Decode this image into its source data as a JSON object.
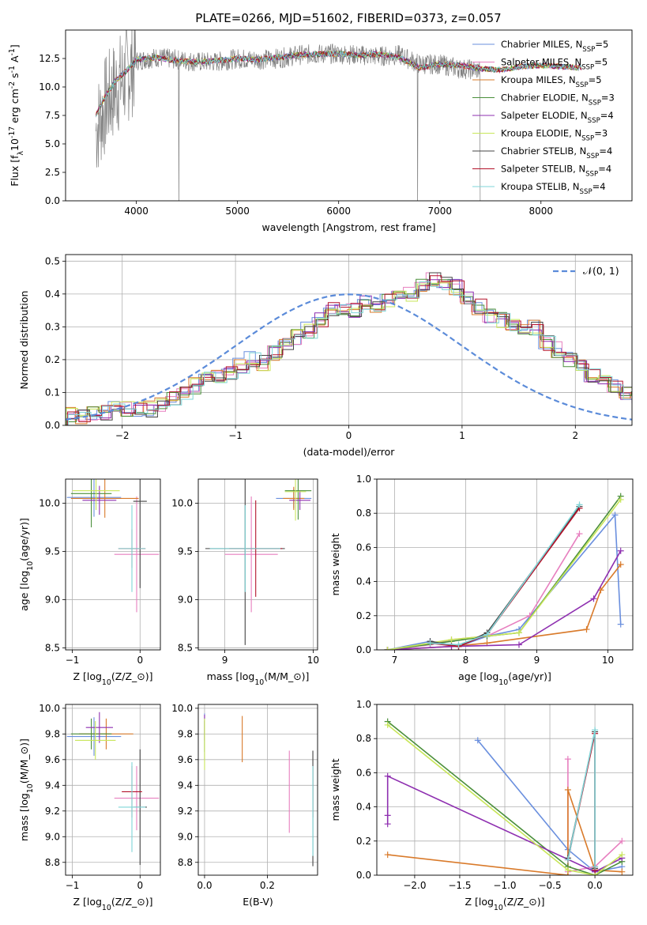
{
  "figure": {
    "title": "PLATE=0266, MJD=51602, FIBERID=0373, z=0.057",
    "models": [
      {
        "label": "Chabrier MILES, N$_{SSP}$=5",
        "color": "#6a8fde"
      },
      {
        "label": "Salpeter MILES, N$_{SSP}$=5",
        "color": "#e77fbf"
      },
      {
        "label": "Kroupa MILES, N$_{SSP}$=5",
        "color": "#d97a2a"
      },
      {
        "label": "Chabrier ELODIE, N$_{SSP}$=3",
        "color": "#4a8f3a"
      },
      {
        "label": "Salpeter ELODIE, N$_{SSP}$=4",
        "color": "#8e2fb0"
      },
      {
        "label": "Kroupa ELODIE, N$_{SSP}$=3",
        "color": "#c8e65a"
      },
      {
        "label": "Chabrier STELIB, N$_{SSP}$=4",
        "color": "#444444"
      },
      {
        "label": "Salpeter STELIB, N$_{SSP}$=4",
        "color": "#b3122a"
      },
      {
        "label": "Kroupa STELIB, N$_{SSP}$=4",
        "color": "#7fd6d8"
      }
    ]
  },
  "chart_data": [
    {
      "type": "line",
      "id": "spectrum",
      "xlabel": "wavelength [Angstrom, rest frame]",
      "ylabel": "Flux [f$_{λ}$10$^{-17}$ erg cm$^{-2}$ s$^{-1}$ A$^{-1}$]",
      "xlim": [
        3300,
        8900
      ],
      "ylim": [
        0,
        15
      ],
      "xticks": [
        4000,
        5000,
        6000,
        7000,
        8000
      ],
      "yticks": [
        0.0,
        2.5,
        5.0,
        7.5,
        10.0,
        12.5
      ],
      "ytick_labels": [
        "0.0",
        "2.5",
        "5.0",
        "7.5",
        "10.0",
        "12.5"
      ],
      "grid": false,
      "legend": "right",
      "data_series": {
        "name": "data",
        "color": "#808080",
        "x": [
          3600,
          3700,
          3800,
          3900,
          4000,
          4200,
          4400,
          4600,
          4800,
          5000,
          5200,
          5400,
          5600,
          5800,
          6000,
          6200,
          6400,
          6600,
          6800,
          7000,
          7200,
          7400
        ],
        "y": [
          6.2,
          8.5,
          10.0,
          11.0,
          12.3,
          12.6,
          12.4,
          12.2,
          12.2,
          12.5,
          12.4,
          12.5,
          12.8,
          12.9,
          12.9,
          12.8,
          12.7,
          12.8,
          12.0,
          12.0,
          11.6,
          11.5
        ]
      },
      "model_series": {
        "x": [
          3600,
          3700,
          3800,
          3900,
          4000,
          4200,
          4400,
          4600,
          4800,
          5000,
          5200,
          5400,
          5600,
          5800,
          6000,
          6200,
          6400,
          6600,
          6800,
          7000,
          7200,
          7400,
          7600,
          7800,
          8000,
          8200,
          8400
        ],
        "y": [
          7.5,
          9.3,
          10.6,
          11.4,
          12.4,
          12.6,
          12.3,
          12.2,
          12.3,
          12.5,
          12.4,
          12.6,
          12.8,
          12.9,
          12.9,
          12.8,
          12.9,
          12.6,
          11.7,
          12.0,
          11.9,
          11.6,
          11.5,
          11.8,
          11.9,
          11.8,
          11.7
        ]
      }
    },
    {
      "type": "bar",
      "id": "residual-histogram",
      "xlabel": "(data-model)/error",
      "ylabel": "Normed distribution",
      "xlim": [
        -2.5,
        2.5
      ],
      "ylim": [
        0,
        0.52
      ],
      "xticks": [
        -2,
        -1,
        0,
        1,
        2
      ],
      "xtick_labels": [
        "−2",
        "−1",
        "0",
        "1",
        "2"
      ],
      "yticks": [
        0.0,
        0.1,
        0.2,
        0.3,
        0.4,
        0.5
      ],
      "ytick_labels": [
        "0.0",
        "0.1",
        "0.2",
        "0.3",
        "0.4",
        "0.5"
      ],
      "grid": true,
      "legend": "top-right",
      "curve_label": "𝒩(0, 1)",
      "curve_color": "#5b8bd9",
      "bin_width": 0.1,
      "bins_start": -2.5,
      "base_values": [
        0.03,
        0.03,
        0.04,
        0.04,
        0.05,
        0.05,
        0.05,
        0.05,
        0.06,
        0.08,
        0.1,
        0.12,
        0.14,
        0.15,
        0.16,
        0.18,
        0.2,
        0.19,
        0.22,
        0.24,
        0.27,
        0.29,
        0.32,
        0.35,
        0.36,
        0.35,
        0.37,
        0.36,
        0.38,
        0.39,
        0.4,
        0.43,
        0.44,
        0.43,
        0.42,
        0.39,
        0.36,
        0.33,
        0.32,
        0.31,
        0.3,
        0.3,
        0.25,
        0.23,
        0.2,
        0.18,
        0.15,
        0.14,
        0.12,
        0.1,
        0.08,
        0.06,
        0.05,
        0.05,
        0.04,
        0.04,
        0.03,
        0.03,
        0.03,
        0.03
      ]
    },
    {
      "type": "scatter",
      "id": "age-vs-metallicity",
      "xlabel": "Z [log$_{10}$(Z/Z$_\\odot$)]",
      "ylabel": "age  [log$_{10}$(age/yr)]",
      "xlim": [
        -1.1,
        0.3
      ],
      "ylim": [
        8.48,
        10.25
      ],
      "xticks": [
        -1,
        0
      ],
      "xtick_labels": [
        "−1",
        "0"
      ],
      "yticks": [
        8.5,
        9.0,
        9.5,
        10.0
      ],
      "ytick_labels": [
        "8.5",
        "9.0",
        "9.5",
        "10.0"
      ],
      "grid": true,
      "points": [
        {
          "x": -0.68,
          "y": 10.06,
          "xerr": 0.4,
          "yerr": 0.2,
          "model": 0
        },
        {
          "x": -0.05,
          "y": 9.47,
          "xerr": 0.33,
          "yerr": 0.6,
          "model": 1
        },
        {
          "x": -0.52,
          "y": 10.05,
          "xerr": 0.5,
          "yerr": 0.2,
          "model": 2
        },
        {
          "x": -0.72,
          "y": 10.1,
          "xerr": 0.3,
          "yerr": 0.35,
          "model": 3
        },
        {
          "x": -0.6,
          "y": 10.03,
          "xerr": 0.25,
          "yerr": 0.15,
          "model": 4
        },
        {
          "x": -0.65,
          "y": 10.13,
          "xerr": 0.35,
          "yerr": 0.2,
          "model": 5
        },
        {
          "x": 0.0,
          "y": 10.02,
          "xerr": 0.1,
          "yerr": 0.9,
          "model": 6
        },
        {
          "x": -0.12,
          "y": 9.53,
          "xerr": 0.2,
          "yerr": 0.2,
          "model": 7
        },
        {
          "x": -0.12,
          "y": 9.53,
          "xerr": 0.2,
          "yerr": 0.45,
          "model": 8
        }
      ]
    },
    {
      "type": "scatter",
      "id": "age-vs-mass",
      "xlabel": "mass [log$_{10}$(M/M$_\\odot$)]",
      "ylabel": "",
      "xlim": [
        8.7,
        10.05
      ],
      "ylim": [
        8.48,
        10.25
      ],
      "xticks": [
        9,
        10
      ],
      "xtick_labels": [
        "9",
        "10"
      ],
      "yticks": [
        8.5,
        9.0,
        9.5,
        10.0
      ],
      "ytick_labels": [
        "8.5",
        "9.0",
        "9.5",
        "10.0"
      ],
      "grid": true,
      "points": [
        {
          "x": 9.78,
          "y": 10.05,
          "xerr": 0.2,
          "yerr": 0.1,
          "model": 0
        },
        {
          "x": 9.3,
          "y": 9.47,
          "xerr": 0.3,
          "yerr": 0.6,
          "model": 1
        },
        {
          "x": 9.78,
          "y": 10.05,
          "xerr": 0.12,
          "yerr": 0.12,
          "model": 2
        },
        {
          "x": 9.83,
          "y": 10.13,
          "xerr": 0.15,
          "yerr": 0.3,
          "model": 3
        },
        {
          "x": 9.85,
          "y": 10.03,
          "xerr": 0.12,
          "yerr": 0.1,
          "model": 4
        },
        {
          "x": 9.8,
          "y": 10.12,
          "xerr": 0.12,
          "yerr": 0.3,
          "model": 5
        },
        {
          "x": 9.23,
          "y": 9.53,
          "xerr": 0.45,
          "yerr": 1.0,
          "model": 6
        },
        {
          "x": 9.35,
          "y": 9.53,
          "xerr": 0.3,
          "yerr": 0.5,
          "model": 7
        },
        {
          "x": 9.23,
          "y": 9.53,
          "xerr": 0.4,
          "yerr": 0.45,
          "model": 8
        }
      ]
    },
    {
      "type": "line",
      "id": "mass-weight-vs-age",
      "xlabel": "age  [log$_{10}$(age/yr)]",
      "ylabel": "mass weight",
      "xlim": [
        6.75,
        10.35
      ],
      "ylim": [
        0,
        1.0
      ],
      "xticks": [
        7,
        8,
        9,
        10
      ],
      "xtick_labels": [
        "7",
        "8",
        "9",
        "10"
      ],
      "yticks": [
        0.0,
        0.2,
        0.4,
        0.6,
        0.8,
        1.0
      ],
      "ytick_labels": [
        "0.0",
        "0.2",
        "0.4",
        "0.6",
        "0.8",
        "1.0"
      ],
      "grid": true,
      "series": [
        {
          "model": 0,
          "x": [
            6.9,
            7.5,
            7.9,
            8.3,
            8.75,
            10.1,
            10.18
          ],
          "y": [
            0.0,
            0.05,
            0.02,
            0.08,
            0.12,
            0.79,
            0.15
          ]
        },
        {
          "model": 1,
          "x": [
            6.9,
            7.5,
            7.8,
            8.3,
            8.9,
            9.6
          ],
          "y": [
            0.0,
            0.03,
            0.06,
            0.08,
            0.2,
            0.68
          ]
        },
        {
          "model": 2,
          "x": [
            6.9,
            7.8,
            8.3,
            9.7,
            9.9,
            10.18
          ],
          "y": [
            0.0,
            0.02,
            0.04,
            0.12,
            0.35,
            0.5
          ]
        },
        {
          "model": 3,
          "x": [
            6.9,
            7.8,
            8.3,
            8.75,
            10.18
          ],
          "y": [
            0.0,
            0.05,
            0.08,
            0.1,
            0.9
          ]
        },
        {
          "model": 4,
          "x": [
            6.9,
            7.8,
            8.75,
            9.8,
            10.18
          ],
          "y": [
            0.0,
            0.02,
            0.03,
            0.3,
            0.58
          ]
        },
        {
          "model": 5,
          "x": [
            6.9,
            7.8,
            8.75,
            10.18
          ],
          "y": [
            0.0,
            0.06,
            0.1,
            0.88
          ]
        },
        {
          "model": 6,
          "x": [
            7.5,
            7.9,
            8.3,
            9.6
          ],
          "y": [
            0.05,
            0.02,
            0.1,
            0.84
          ]
        },
        {
          "model": 7,
          "x": [
            7.5,
            7.9,
            8.3,
            9.6
          ],
          "y": [
            0.04,
            0.02,
            0.09,
            0.83
          ]
        },
        {
          "model": 8,
          "x": [
            7.5,
            7.9,
            8.3,
            9.6
          ],
          "y": [
            0.04,
            0.03,
            0.09,
            0.85
          ]
        }
      ]
    },
    {
      "type": "scatter",
      "id": "mass-vs-metallicity",
      "xlabel": "Z [log$_{10}$(Z/Z$_\\odot$)]",
      "ylabel": "mass [log$_{10}$(M/M$_\\odot$)]",
      "xlim": [
        -1.1,
        0.3
      ],
      "ylim": [
        8.7,
        10.03
      ],
      "xticks": [
        -1,
        0
      ],
      "xtick_labels": [
        "−1",
        "0"
      ],
      "yticks": [
        8.8,
        9.0,
        9.2,
        9.4,
        9.6,
        9.8,
        10.0
      ],
      "ytick_labels": [
        "8.8",
        "9.0",
        "9.2",
        "9.4",
        "9.6",
        "9.8",
        "10.0"
      ],
      "grid": true,
      "points": [
        {
          "x": -0.68,
          "y": 9.78,
          "xerr": 0.4,
          "yerr": 0.15,
          "model": 0
        },
        {
          "x": -0.05,
          "y": 9.3,
          "xerr": 0.33,
          "yerr": 0.25,
          "model": 1
        },
        {
          "x": -0.5,
          "y": 9.8,
          "xerr": 0.4,
          "yerr": 0.12,
          "model": 2
        },
        {
          "x": -0.72,
          "y": 9.8,
          "xerr": 0.3,
          "yerr": 0.12,
          "model": 3
        },
        {
          "x": -0.6,
          "y": 9.85,
          "xerr": 0.2,
          "yerr": 0.12,
          "model": 4
        },
        {
          "x": -0.66,
          "y": 9.75,
          "xerr": 0.3,
          "yerr": 0.15,
          "model": 5
        },
        {
          "x": 0.0,
          "y": 9.23,
          "xerr": 0.1,
          "yerr": 0.45,
          "model": 6
        },
        {
          "x": -0.12,
          "y": 9.35,
          "xerr": 0.15,
          "yerr": 0.2,
          "model": 7
        },
        {
          "x": -0.12,
          "y": 9.23,
          "xerr": 0.2,
          "yerr": 0.35,
          "model": 8
        }
      ]
    },
    {
      "type": "scatter",
      "id": "mass-vs-extinction",
      "xlabel": "E(B-V)",
      "ylabel": "",
      "xlim": [
        -0.02,
        0.36
      ],
      "ylim": [
        8.7,
        10.03
      ],
      "xticks": [
        0.0,
        0.2
      ],
      "xtick_labels": [
        "0.0",
        "0.2"
      ],
      "yticks": [
        8.8,
        9.0,
        9.2,
        9.4,
        9.6,
        9.8,
        10.0
      ],
      "ytick_labels": [
        "8.8",
        "9.0",
        "9.2",
        "9.4",
        "9.6",
        "9.8",
        "10.0"
      ],
      "grid": true,
      "points": [
        {
          "x": 0.0,
          "y": 9.78,
          "xerr": 0.0,
          "yerr": 0.18,
          "model": 0
        },
        {
          "x": 0.27,
          "y": 9.35,
          "xerr": 0.0,
          "yerr": 0.32,
          "model": 1
        },
        {
          "x": 0.12,
          "y": 9.76,
          "xerr": 0.0,
          "yerr": 0.18,
          "model": 2
        },
        {
          "x": 0.0,
          "y": 9.78,
          "xerr": 0.0,
          "yerr": 0.12,
          "model": 3
        },
        {
          "x": 0.0,
          "y": 9.85,
          "xerr": 0.0,
          "yerr": 0.1,
          "model": 4
        },
        {
          "x": 0.0,
          "y": 9.72,
          "xerr": 0.0,
          "yerr": 0.2,
          "model": 5
        },
        {
          "x": 0.345,
          "y": 9.22,
          "xerr": 0.0,
          "yerr": 0.45,
          "model": 6
        },
        {
          "x": 0.345,
          "y": 9.35,
          "xerr": 0.0,
          "yerr": 0.2,
          "model": 7
        },
        {
          "x": 0.345,
          "y": 9.2,
          "xerr": 0.0,
          "yerr": 0.35,
          "model": 8
        }
      ]
    },
    {
      "type": "line",
      "id": "mass-weight-vs-metallicity",
      "xlabel": "Z [log$_{10}$(Z/Z$_\\odot$)]",
      "ylabel": "mass weight",
      "xlim": [
        -2.42,
        0.42
      ],
      "ylim": [
        0,
        1.0
      ],
      "xticks": [
        -2.0,
        -1.5,
        -1.0,
        -0.5,
        0.0
      ],
      "xtick_labels": [
        "−2.0",
        "−1.5",
        "−1.0",
        "−0.5",
        "0.0"
      ],
      "yticks": [
        0.0,
        0.2,
        0.4,
        0.6,
        0.8,
        1.0
      ],
      "ytick_labels": [
        "0.0",
        "0.2",
        "0.4",
        "0.6",
        "0.8",
        "1.0"
      ],
      "grid": true,
      "series": [
        {
          "model": 0,
          "x": [
            -1.3,
            -0.3,
            0.0,
            0.3
          ],
          "y": [
            0.79,
            0.15,
            0.02,
            0.05
          ]
        },
        {
          "model": 1,
          "x": [
            -0.3,
            -0.3,
            0.0,
            0.3
          ],
          "y": [
            0.68,
            0.02,
            0.05,
            0.2
          ]
        },
        {
          "model": 2,
          "x": [
            -2.3,
            -0.3,
            -0.3,
            0.0,
            0.3
          ],
          "y": [
            0.12,
            0.0,
            0.5,
            0.03,
            0.02
          ]
        },
        {
          "model": 3,
          "x": [
            -2.3,
            -0.3,
            0.0,
            0.3
          ],
          "y": [
            0.9,
            0.05,
            0.0,
            0.08
          ]
        },
        {
          "model": 4,
          "x": [
            -2.3,
            -2.3,
            -2.3,
            0.0,
            0.3
          ],
          "y": [
            0.3,
            0.35,
            0.58,
            0.02,
            0.1
          ]
        },
        {
          "model": 5,
          "x": [
            -2.3,
            -0.3,
            0.0,
            0.3
          ],
          "y": [
            0.88,
            0.03,
            0.0,
            0.12
          ]
        },
        {
          "model": 6,
          "x": [
            -0.3,
            0.0,
            0.0
          ],
          "y": [
            0.1,
            0.84,
            0.04
          ]
        },
        {
          "model": 7,
          "x": [
            -0.3,
            0.0,
            0.0
          ],
          "y": [
            0.09,
            0.83,
            0.03
          ]
        },
        {
          "model": 8,
          "x": [
            -0.3,
            0.0,
            0.0
          ],
          "y": [
            0.09,
            0.85,
            0.05
          ]
        }
      ]
    }
  ]
}
